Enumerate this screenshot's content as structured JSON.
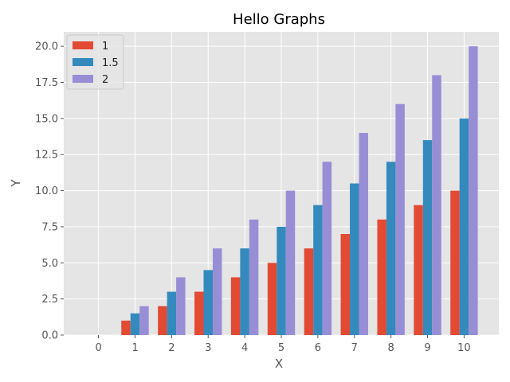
{
  "chart_data": {
    "type": "bar",
    "title": "Hello Graphs",
    "xlabel": "X",
    "ylabel": "Y",
    "categories": [
      "0",
      "1",
      "2",
      "3",
      "4",
      "5",
      "6",
      "7",
      "8",
      "9",
      "10"
    ],
    "series": [
      {
        "name": "1",
        "color": "#E24A33",
        "values": [
          0,
          1,
          2,
          3,
          4,
          5,
          6,
          7,
          8,
          9,
          10
        ]
      },
      {
        "name": "1.5",
        "color": "#348ABD",
        "values": [
          0,
          1.5,
          3,
          4.5,
          6,
          7.5,
          9,
          10.5,
          12,
          13.5,
          15
        ]
      },
      {
        "name": "2",
        "color": "#988ED5",
        "values": [
          0,
          2,
          4,
          6,
          8,
          10,
          12,
          14,
          16,
          18,
          20
        ]
      }
    ],
    "ylim": [
      0,
      21
    ],
    "yticks": [
      "0.0",
      "2.5",
      "5.0",
      "7.5",
      "10.0",
      "12.5",
      "15.0",
      "17.5",
      "20.0"
    ],
    "grid": true,
    "legend_position": "top-left",
    "style": {
      "background": "#E5E5E5",
      "grid_color": "#FFFFFF"
    }
  }
}
